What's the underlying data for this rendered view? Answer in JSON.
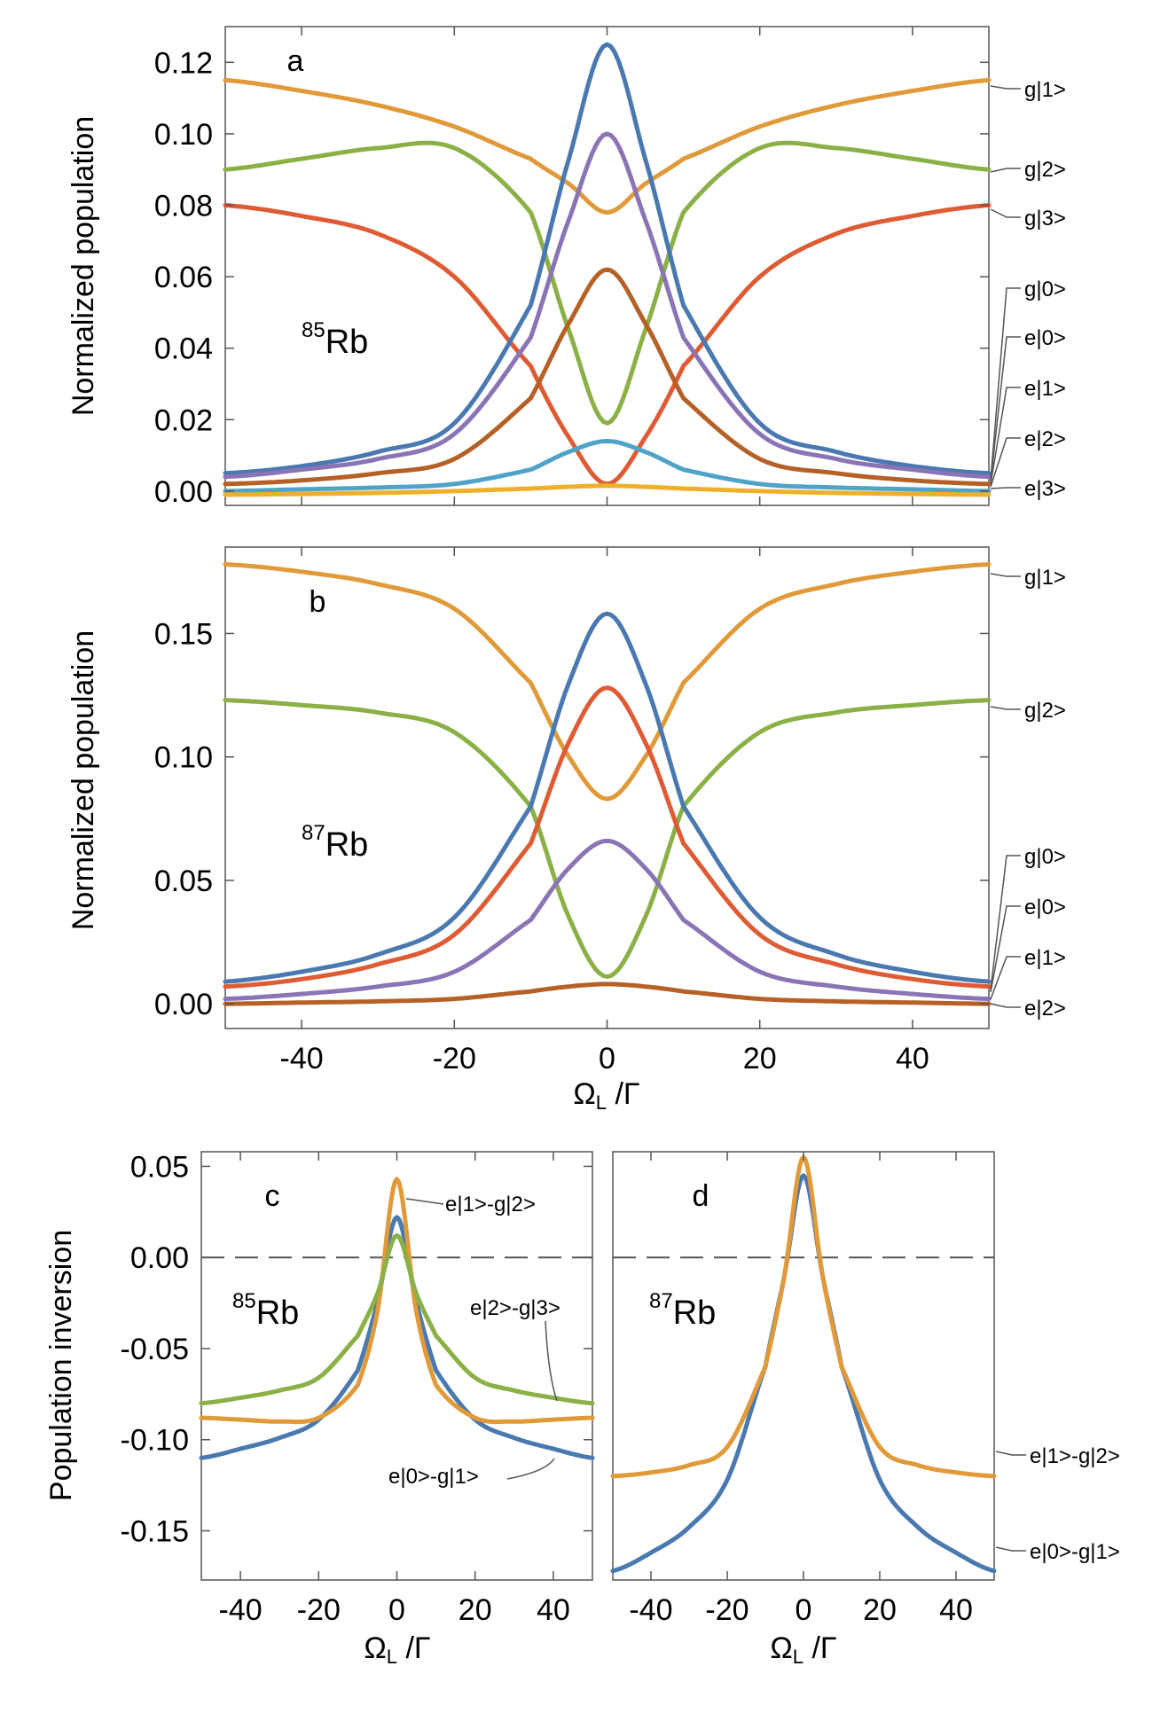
{
  "colors": {
    "blue": "#4a78b0",
    "orange": "#e09a3a",
    "green": "#8ab046",
    "red": "#de5b34",
    "purple": "#8a74b5",
    "brown": "#b56026",
    "lightblue": "#4fa3c9",
    "yellow": "#eeaf2a"
  },
  "chart_data": [
    {
      "id": "a",
      "type": "line",
      "panel_label": "a",
      "isotope_mass": "85",
      "isotope_symbol": "Rb",
      "ylabel": "Normalized population",
      "xlabel": "",
      "xlim": [
        -50,
        50
      ],
      "ylim": [
        -0.004,
        0.13
      ],
      "xticks": [
        -40,
        -20,
        0,
        20,
        40
      ],
      "yticks": [
        0.0,
        0.02,
        0.04,
        0.06,
        0.08,
        0.1,
        0.12
      ],
      "ytick_labels": [
        "0.00",
        "0.02",
        "0.04",
        "0.06",
        "0.08",
        "0.10",
        "0.12"
      ],
      "x_samples": [
        -50,
        -40,
        -30,
        -20,
        -10,
        -5,
        0,
        5,
        10,
        20,
        30,
        40,
        50
      ],
      "series": [
        {
          "name": "g|1>",
          "color": "orange",
          "values": [
            0.115,
            0.112,
            0.108,
            0.102,
            0.093,
            0.086,
            0.078,
            0.086,
            0.093,
            0.102,
            0.108,
            0.112,
            0.115
          ]
        },
        {
          "name": "g|2>",
          "color": "green",
          "values": [
            0.09,
            0.093,
            0.096,
            0.096,
            0.078,
            0.045,
            0.019,
            0.045,
            0.078,
            0.096,
            0.096,
            0.093,
            0.09
          ]
        },
        {
          "name": "g|3>",
          "color": "red",
          "values": [
            0.08,
            0.077,
            0.072,
            0.06,
            0.035,
            0.015,
            0.002,
            0.015,
            0.035,
            0.06,
            0.072,
            0.077,
            0.08
          ]
        },
        {
          "name": "g|0>",
          "color": "blue",
          "values": [
            0.005,
            0.007,
            0.011,
            0.019,
            0.052,
            0.093,
            0.125,
            0.093,
            0.052,
            0.019,
            0.011,
            0.007,
            0.005
          ]
        },
        {
          "name": "e|0>",
          "color": "purple",
          "values": [
            0.004,
            0.006,
            0.009,
            0.016,
            0.043,
            0.076,
            0.1,
            0.076,
            0.043,
            0.016,
            0.009,
            0.006,
            0.004
          ]
        },
        {
          "name": "e|1>",
          "color": "brown",
          "values": [
            0.002,
            0.003,
            0.005,
            0.009,
            0.026,
            0.047,
            0.062,
            0.047,
            0.026,
            0.009,
            0.005,
            0.003,
            0.002
          ]
        },
        {
          "name": "e|2>",
          "color": "lightblue",
          "values": [
            0.0,
            0.0005,
            0.001,
            0.002,
            0.006,
            0.011,
            0.014,
            0.011,
            0.006,
            0.002,
            0.001,
            0.0005,
            0.0
          ]
        },
        {
          "name": "e|3>",
          "color": "yellow",
          "values": [
            -0.001,
            -0.0008,
            -0.0005,
            0.0,
            0.0007,
            0.0012,
            0.0015,
            0.0012,
            0.0007,
            0.0,
            -0.0005,
            -0.0008,
            -0.001
          ]
        }
      ],
      "legend_labels": [
        "g|1>",
        "g|2>",
        "g|3>",
        "g|0>",
        "e|0>",
        "e|1>",
        "e|2>",
        "e|3>"
      ]
    },
    {
      "id": "b",
      "type": "line",
      "panel_label": "b",
      "isotope_mass": "87",
      "isotope_symbol": "Rb",
      "ylabel": "Normalized population",
      "xlabel": "Ω_L /Γ",
      "xlim": [
        -50,
        50
      ],
      "ylim": [
        -0.01,
        0.185
      ],
      "xticks": [
        -40,
        -20,
        0,
        20,
        40
      ],
      "xtick_labels": [
        "-40",
        "-20",
        "0",
        "20",
        "40"
      ],
      "yticks": [
        0.0,
        0.05,
        0.1,
        0.15
      ],
      "ytick_labels": [
        "0.00",
        "0.05",
        "0.10",
        "0.15"
      ],
      "x_samples": [
        -50,
        -40,
        -30,
        -20,
        -10,
        -5,
        0,
        5,
        10,
        20,
        30,
        40,
        50
      ],
      "series": [
        {
          "name": "g|1>",
          "color": "orange",
          "values": [
            0.178,
            0.175,
            0.17,
            0.16,
            0.13,
            0.1,
            0.083,
            0.1,
            0.13,
            0.16,
            0.17,
            0.175,
            0.178
          ]
        },
        {
          "name": "g|2>",
          "color": "green",
          "values": [
            0.123,
            0.121,
            0.118,
            0.11,
            0.08,
            0.035,
            0.011,
            0.035,
            0.08,
            0.11,
            0.118,
            0.121,
            0.123
          ]
        },
        {
          "name": "g|0>",
          "color": "blue",
          "values": [
            0.009,
            0.013,
            0.02,
            0.035,
            0.08,
            0.13,
            0.158,
            0.13,
            0.08,
            0.035,
            0.02,
            0.013,
            0.009
          ]
        },
        {
          "name": "e|0>",
          "color": "red",
          "values": [
            0.007,
            0.01,
            0.016,
            0.028,
            0.065,
            0.106,
            0.128,
            0.106,
            0.065,
            0.028,
            0.016,
            0.01,
            0.007
          ]
        },
        {
          "name": "e|1>",
          "color": "purple",
          "values": [
            0.002,
            0.004,
            0.007,
            0.013,
            0.034,
            0.055,
            0.066,
            0.055,
            0.034,
            0.013,
            0.007,
            0.004,
            0.002
          ]
        },
        {
          "name": "e|2>",
          "color": "brown",
          "values": [
            0.0,
            0.0005,
            0.001,
            0.002,
            0.005,
            0.007,
            0.008,
            0.007,
            0.005,
            0.002,
            0.001,
            0.0005,
            0.0
          ]
        }
      ],
      "legend_labels": [
        "g|1>",
        "g|2>",
        "g|0>",
        "e|0>",
        "e|1>",
        "e|2>"
      ]
    },
    {
      "id": "c",
      "type": "line",
      "panel_label": "c",
      "isotope_mass": "85",
      "isotope_symbol": "Rb",
      "ylabel": "Population inversion",
      "xlabel": "Ω_L /Γ",
      "xlim": [
        -50,
        50
      ],
      "ylim": [
        -0.177,
        0.058
      ],
      "xticks": [
        -40,
        -20,
        0,
        20,
        40
      ],
      "xtick_labels": [
        "-40",
        "-20",
        "0",
        "20",
        "40"
      ],
      "yticks": [
        0.05,
        0.0,
        -0.05,
        -0.1,
        -0.15
      ],
      "ytick_labels": [
        "0.05",
        "0.00",
        "-0.05",
        "-0.10",
        "-0.15"
      ],
      "zero_line": "dashed",
      "x_samples": [
        -50,
        -40,
        -30,
        -20,
        -10,
        -5,
        0,
        5,
        10,
        20,
        30,
        40,
        50
      ],
      "series": [
        {
          "name": "e|0>-g|1>",
          "color": "blue",
          "values": [
            -0.11,
            -0.105,
            -0.099,
            -0.089,
            -0.062,
            -0.025,
            0.022,
            -0.025,
            -0.062,
            -0.089,
            -0.099,
            -0.105,
            -0.11
          ]
        },
        {
          "name": "e|1>-g|2>",
          "color": "orange",
          "values": [
            -0.088,
            -0.089,
            -0.09,
            -0.088,
            -0.07,
            -0.03,
            0.043,
            -0.03,
            -0.07,
            -0.088,
            -0.09,
            -0.089,
            -0.088
          ]
        },
        {
          "name": "e|2>-g|3>",
          "color": "green",
          "values": [
            -0.08,
            -0.077,
            -0.073,
            -0.066,
            -0.043,
            -0.02,
            0.012,
            -0.02,
            -0.043,
            -0.066,
            -0.073,
            -0.077,
            -0.08
          ]
        }
      ],
      "annotations": [
        "e|1>-g|2>",
        "e|2>-g|3>",
        "e|0>-g|1>"
      ]
    },
    {
      "id": "d",
      "type": "line",
      "panel_label": "d",
      "isotope_mass": "87",
      "isotope_symbol": "Rb",
      "ylabel": "",
      "xlabel": "Ω_L /Γ",
      "xlim": [
        -50,
        50
      ],
      "ylim": [
        -0.177,
        0.058
      ],
      "xticks": [
        -40,
        -20,
        0,
        20,
        40
      ],
      "xtick_labels": [
        "-40",
        "-20",
        "0",
        "20",
        "40"
      ],
      "zero_line": "dashed",
      "x_samples": [
        -50,
        -40,
        -30,
        -20,
        -10,
        -5,
        0,
        5,
        10,
        20,
        30,
        40,
        50
      ],
      "series": [
        {
          "name": "e|0>-g|1>",
          "color": "blue",
          "values": [
            -0.172,
            -0.162,
            -0.148,
            -0.122,
            -0.06,
            -0.01,
            0.045,
            -0.01,
            -0.06,
            -0.122,
            -0.148,
            -0.162,
            -0.172
          ]
        },
        {
          "name": "e|1>-g|2>",
          "color": "orange",
          "values": [
            -0.12,
            -0.118,
            -0.114,
            -0.104,
            -0.06,
            -0.01,
            0.055,
            -0.01,
            -0.06,
            -0.104,
            -0.114,
            -0.118,
            -0.12
          ]
        }
      ],
      "legend_labels": [
        "e|1>-g|2>",
        "e|0>-g|1>"
      ]
    }
  ]
}
